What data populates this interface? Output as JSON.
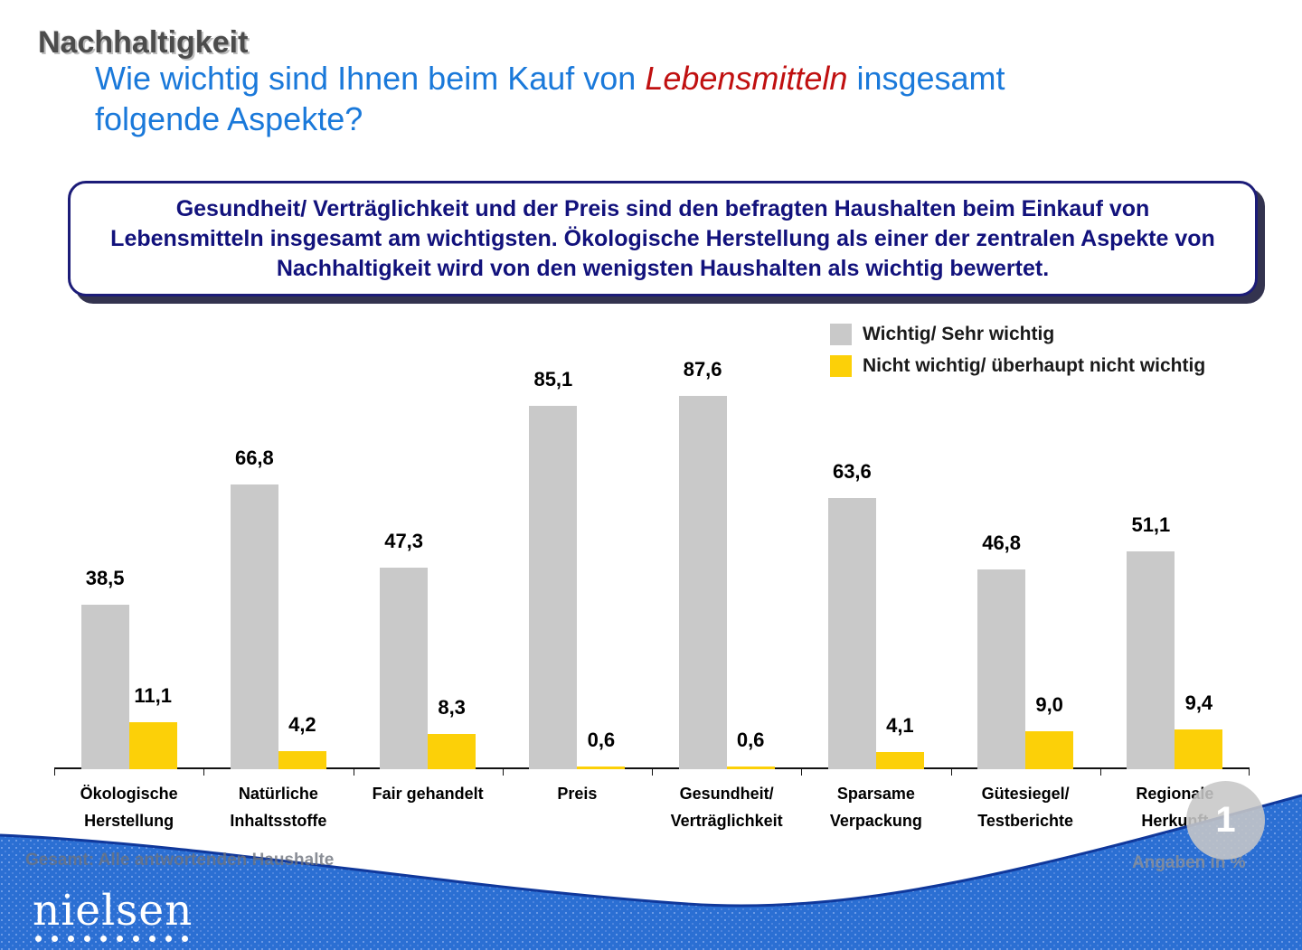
{
  "header": {
    "kicker": "Nachhaltigkeit",
    "question": {
      "line1_pre": "Wie wichtig sind Ihnen beim Kauf von ",
      "line1_em": "Lebensmitteln",
      "line1_post": " insgesamt",
      "line2": "folgende Aspekte?"
    }
  },
  "summary_box": {
    "text": "Gesundheit/ Verträglichkeit und der Preis sind den befragten Haushalten beim Einkauf von Lebensmitteln insgesamt am wichtigsten. Ökologische Herstellung als einer der zentralen Aspekte von Nachhaltigkeit wird von den wenigsten Haushalten als wichtig bewertet."
  },
  "chart_data": {
    "type": "bar",
    "categories": [
      [
        "Ökologische",
        "Herstellung"
      ],
      [
        "Natürliche",
        "Inhaltsstoffe"
      ],
      [
        "Fair gehandelt"
      ],
      [
        "Preis"
      ],
      [
        "Gesundheit/",
        "Verträglichkeit"
      ],
      [
        "Sparsame",
        "Verpackung"
      ],
      [
        "Gütesiegel/",
        "Testberichte"
      ],
      [
        "Regionale",
        "Herkunft"
      ]
    ],
    "series": [
      {
        "name": "Wichtig/ Sehr wichtig",
        "color": "#c9c9c9",
        "values": [
          38.5,
          66.8,
          47.3,
          85.1,
          87.6,
          63.6,
          46.8,
          51.1
        ]
      },
      {
        "name": "Nicht wichtig/ überhaupt nicht wichtig",
        "color": "#fcd008",
        "values": [
          11.1,
          4.2,
          8.3,
          0.6,
          0.6,
          4.1,
          9.0,
          9.4
        ]
      }
    ],
    "ylim": [
      0,
      100
    ],
    "decimal_separator": ",",
    "grid": false,
    "legend_position": "top-right",
    "title": "",
    "xlabel": "",
    "ylabel": ""
  },
  "footer": {
    "left_note": "Gesamt: Alle antwortenden Haushalte",
    "right_note": "Angaben in %",
    "brand": "nielsen",
    "page": "1"
  },
  "colors": {
    "kicker_gray": "#4c4c4c",
    "question_blue": "#1a79da",
    "emphasis_red": "#c01010",
    "box_text_navy": "#12127c",
    "bar_gray": "#c9c9c9",
    "bar_yellow": "#fcd008",
    "wave_blue": "#2b6fd3",
    "wave_edge": "#10389b",
    "circle_gray": "#c7c7c7"
  }
}
